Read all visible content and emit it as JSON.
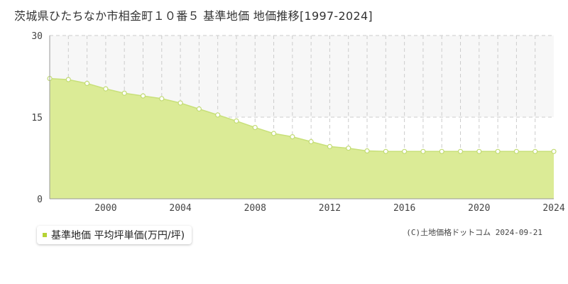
{
  "title": "茨城県ひたちなか市相金町１０番５ 基準地価 地価推移[1997-2024]",
  "colors": {
    "fill": "#dbeb96",
    "line": "#c8e07a",
    "marker_fill": "#ffffff",
    "marker_stroke": "#c2db74",
    "grid": "#cccccc",
    "legend_square": "#b5d334",
    "band": "#f7f7f7"
  },
  "chart_data": {
    "type": "area",
    "title": "茨城県ひたちなか市相金町１０番５ 基準地価 地価推移[1997-2024]",
    "xlabel": "",
    "ylabel": "",
    "xlim": [
      1997,
      2024
    ],
    "ylim": [
      0,
      30
    ],
    "y_ticks": [
      "0",
      "15",
      "30"
    ],
    "x_ticks": [
      "2000",
      "2004",
      "2008",
      "2012",
      "2016",
      "2020",
      "2024"
    ],
    "grid": true,
    "legend_position": "bottom-left",
    "series": [
      {
        "name": "基準地価 平均坪単価(万円/坪)",
        "x": [
          1997,
          1998,
          1999,
          2000,
          2001,
          2002,
          2003,
          2004,
          2005,
          2006,
          2007,
          2008,
          2009,
          2010,
          2011,
          2012,
          2013,
          2014,
          2015,
          2016,
          2017,
          2018,
          2019,
          2020,
          2021,
          2022,
          2023,
          2024
        ],
        "values": [
          22.1,
          21.9,
          21.2,
          20.2,
          19.4,
          18.9,
          18.4,
          17.6,
          16.5,
          15.4,
          14.3,
          13.1,
          12.0,
          11.4,
          10.5,
          9.6,
          9.3,
          8.8,
          8.7,
          8.7,
          8.7,
          8.7,
          8.7,
          8.7,
          8.7,
          8.7,
          8.7,
          8.7
        ]
      }
    ]
  },
  "legend": {
    "label": "基準地価 平均坪単価(万円/坪)"
  },
  "credit": "(C)土地価格ドットコム 2024-09-21"
}
